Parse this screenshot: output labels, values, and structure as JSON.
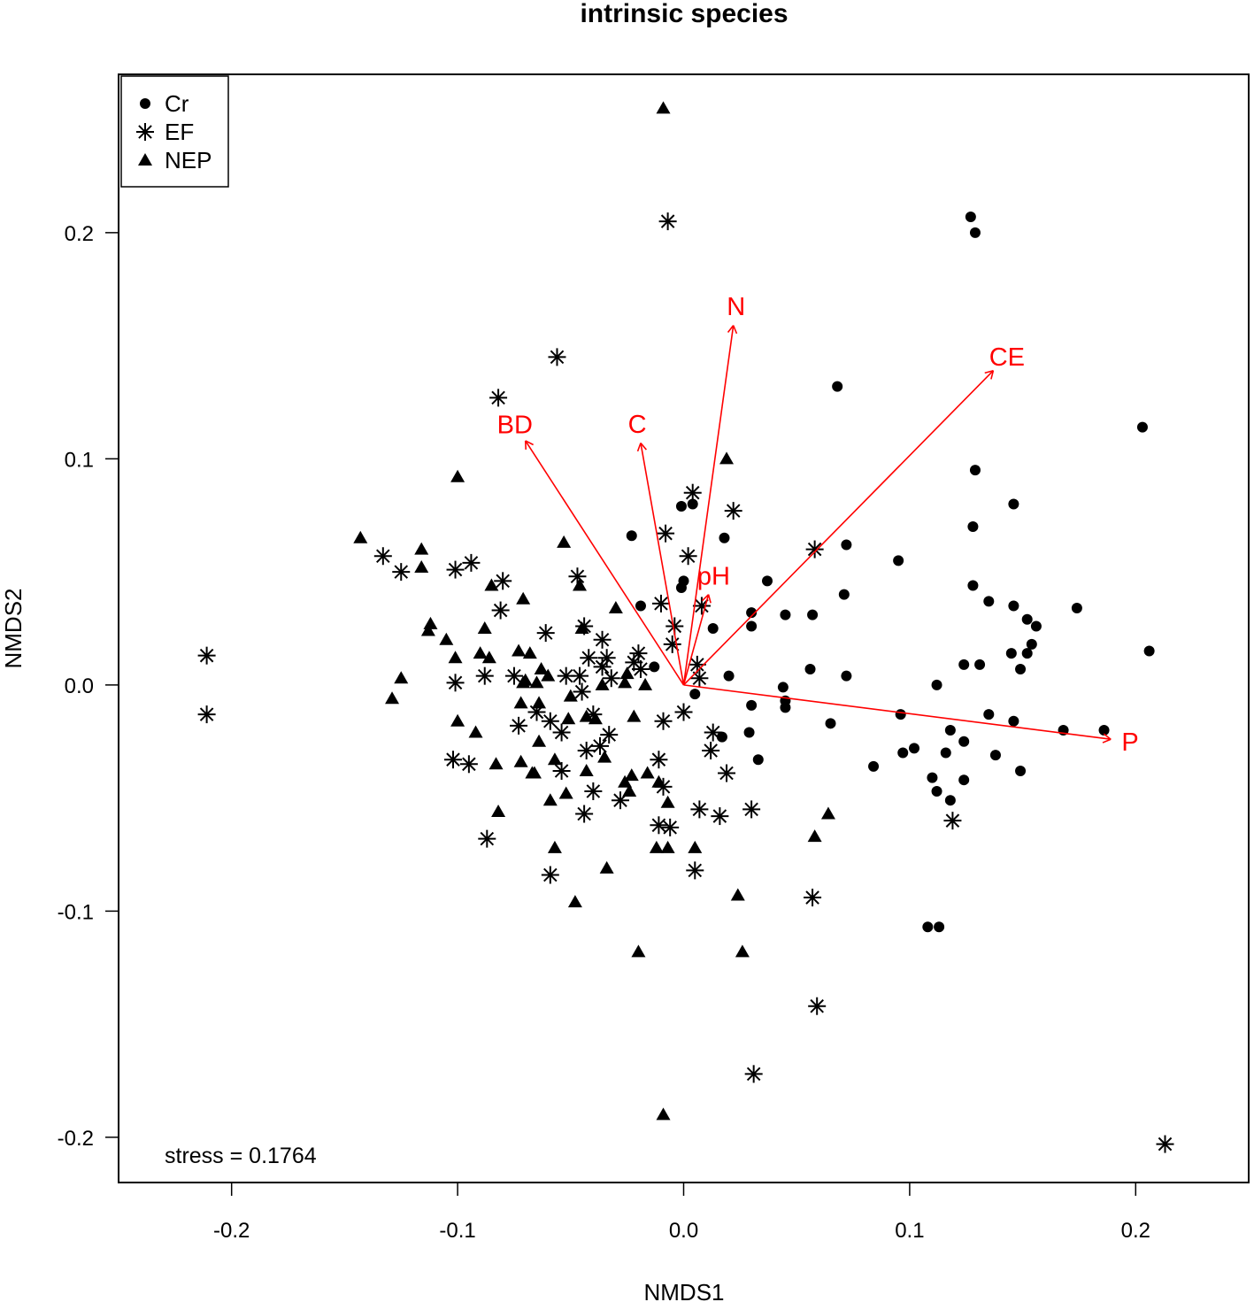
{
  "chart_data": {
    "type": "scatter",
    "title": "intrinsic species",
    "xlabel": "NMDS1",
    "ylabel": "NMDS2",
    "xlim": [
      -0.25,
      0.25
    ],
    "ylim": [
      -0.22,
      0.27
    ],
    "x_ticks": [
      "-0.2",
      "-0.1",
      "0.0",
      "0.1",
      "0.2"
    ],
    "y_ticks": [
      "-0.2",
      "-0.1",
      "0.0",
      "0.1",
      "0.2"
    ],
    "x_tick_values": [
      -0.2,
      -0.1,
      0.0,
      0.1,
      0.2
    ],
    "y_tick_values": [
      -0.2,
      -0.1,
      0.0,
      0.1,
      0.2
    ],
    "grid": false,
    "legend_position": "top-left",
    "annotation": "stress = 0.1764",
    "vector_color": "#ff0000",
    "series": [
      {
        "name": "Cr",
        "marker": "circle",
        "points": [
          [
            0.127,
            0.207
          ],
          [
            0.129,
            0.2
          ],
          [
            0.068,
            0.132
          ],
          [
            0.203,
            0.114
          ],
          [
            0.129,
            0.095
          ],
          [
            0.146,
            0.08
          ],
          [
            -0.001,
            0.079
          ],
          [
            0.004,
            0.08
          ],
          [
            0.128,
            0.07
          ],
          [
            -0.023,
            0.066
          ],
          [
            0.018,
            0.065
          ],
          [
            0.072,
            0.062
          ],
          [
            0.095,
            0.055
          ],
          [
            0.0,
            0.046
          ],
          [
            0.037,
            0.046
          ],
          [
            -0.001,
            0.043
          ],
          [
            0.128,
            0.044
          ],
          [
            0.071,
            0.04
          ],
          [
            0.135,
            0.037
          ],
          [
            0.146,
            0.035
          ],
          [
            0.174,
            0.034
          ],
          [
            -0.019,
            0.035
          ],
          [
            0.03,
            0.032
          ],
          [
            0.045,
            0.031
          ],
          [
            0.057,
            0.031
          ],
          [
            0.152,
            0.029
          ],
          [
            0.156,
            0.026
          ],
          [
            0.03,
            0.026
          ],
          [
            0.013,
            0.025
          ],
          [
            0.154,
            0.018
          ],
          [
            0.206,
            0.015
          ],
          [
            0.152,
            0.014
          ],
          [
            0.145,
            0.014
          ],
          [
            0.124,
            0.009
          ],
          [
            0.131,
            0.009
          ],
          [
            0.149,
            0.007
          ],
          [
            -0.013,
            0.008
          ],
          [
            0.056,
            0.007
          ],
          [
            0.072,
            0.004
          ],
          [
            0.02,
            0.004
          ],
          [
            0.112,
            0.0
          ],
          [
            0.044,
            -0.001
          ],
          [
            0.005,
            -0.004
          ],
          [
            0.045,
            -0.007
          ],
          [
            0.03,
            -0.009
          ],
          [
            0.045,
            -0.01
          ],
          [
            0.096,
            -0.013
          ],
          [
            0.135,
            -0.013
          ],
          [
            0.146,
            -0.016
          ],
          [
            0.065,
            -0.017
          ],
          [
            0.118,
            -0.02
          ],
          [
            0.168,
            -0.02
          ],
          [
            0.186,
            -0.02
          ],
          [
            0.029,
            -0.021
          ],
          [
            0.017,
            -0.023
          ],
          [
            0.124,
            -0.025
          ],
          [
            0.102,
            -0.028
          ],
          [
            0.097,
            -0.03
          ],
          [
            0.116,
            -0.03
          ],
          [
            0.138,
            -0.031
          ],
          [
            0.033,
            -0.033
          ],
          [
            0.084,
            -0.036
          ],
          [
            0.149,
            -0.038
          ],
          [
            0.11,
            -0.041
          ],
          [
            0.124,
            -0.042
          ],
          [
            0.112,
            -0.047
          ],
          [
            0.118,
            -0.051
          ],
          [
            0.108,
            -0.107
          ],
          [
            0.113,
            -0.107
          ]
        ]
      },
      {
        "name": "EF",
        "marker": "asterisk",
        "points": [
          [
            -0.007,
            0.205
          ],
          [
            -0.056,
            0.145
          ],
          [
            -0.082,
            0.127
          ],
          [
            0.004,
            0.085
          ],
          [
            0.022,
            0.077
          ],
          [
            -0.008,
            0.067
          ],
          [
            0.002,
            0.057
          ],
          [
            0.058,
            0.06
          ],
          [
            -0.133,
            0.057
          ],
          [
            -0.094,
            0.054
          ],
          [
            -0.125,
            0.05
          ],
          [
            -0.101,
            0.051
          ],
          [
            -0.08,
            0.046
          ],
          [
            -0.047,
            0.048
          ],
          [
            -0.01,
            0.036
          ],
          [
            0.008,
            0.035
          ],
          [
            -0.081,
            0.033
          ],
          [
            -0.061,
            0.023
          ],
          [
            -0.044,
            0.026
          ],
          [
            -0.004,
            0.026
          ],
          [
            -0.036,
            0.02
          ],
          [
            -0.005,
            0.018
          ],
          [
            -0.02,
            0.014
          ],
          [
            -0.042,
            0.012
          ],
          [
            -0.034,
            0.012
          ],
          [
            -0.036,
            0.008
          ],
          [
            -0.022,
            0.01
          ],
          [
            -0.019,
            0.007
          ],
          [
            0.006,
            0.009
          ],
          [
            -0.211,
            0.013
          ],
          [
            -0.046,
            0.004
          ],
          [
            -0.052,
            0.004
          ],
          [
            -0.088,
            0.004
          ],
          [
            -0.075,
            0.004
          ],
          [
            -0.032,
            0.003
          ],
          [
            0.007,
            0.003
          ],
          [
            -0.101,
            0.001
          ],
          [
            -0.045,
            -0.003
          ],
          [
            -0.065,
            -0.012
          ],
          [
            -0.009,
            -0.016
          ],
          [
            0.0,
            -0.012
          ],
          [
            -0.211,
            -0.013
          ],
          [
            -0.04,
            -0.013
          ],
          [
            -0.059,
            -0.016
          ],
          [
            -0.073,
            -0.018
          ],
          [
            -0.054,
            -0.021
          ],
          [
            0.013,
            -0.021
          ],
          [
            -0.033,
            -0.022
          ],
          [
            -0.037,
            -0.027
          ],
          [
            0.012,
            -0.029
          ],
          [
            -0.043,
            -0.029
          ],
          [
            -0.102,
            -0.033
          ],
          [
            -0.095,
            -0.035
          ],
          [
            -0.011,
            -0.033
          ],
          [
            -0.054,
            -0.038
          ],
          [
            0.019,
            -0.039
          ],
          [
            -0.009,
            -0.045
          ],
          [
            -0.04,
            -0.047
          ],
          [
            -0.028,
            -0.051
          ],
          [
            0.007,
            -0.055
          ],
          [
            0.03,
            -0.055
          ],
          [
            -0.044,
            -0.057
          ],
          [
            0.016,
            -0.058
          ],
          [
            -0.011,
            -0.062
          ],
          [
            -0.006,
            -0.063
          ],
          [
            0.119,
            -0.06
          ],
          [
            -0.087,
            -0.068
          ],
          [
            0.005,
            -0.082
          ],
          [
            -0.059,
            -0.084
          ],
          [
            0.057,
            -0.094
          ],
          [
            0.059,
            -0.142
          ],
          [
            0.031,
            -0.172
          ],
          [
            0.213,
            -0.203
          ]
        ]
      },
      {
        "name": "NEP",
        "marker": "triangle",
        "points": [
          [
            -0.009,
            0.255
          ],
          [
            0.019,
            0.1
          ],
          [
            -0.1,
            0.092
          ],
          [
            -0.143,
            0.065
          ],
          [
            -0.053,
            0.063
          ],
          [
            -0.116,
            0.06
          ],
          [
            -0.116,
            0.052
          ],
          [
            -0.046,
            0.044
          ],
          [
            -0.085,
            0.044
          ],
          [
            -0.071,
            0.038
          ],
          [
            -0.112,
            0.027
          ],
          [
            -0.045,
            0.025
          ],
          [
            -0.105,
            0.02
          ],
          [
            -0.03,
            0.034
          ],
          [
            -0.113,
            0.024
          ],
          [
            -0.088,
            0.025
          ],
          [
            -0.09,
            0.014
          ],
          [
            -0.073,
            0.015
          ],
          [
            -0.068,
            0.014
          ],
          [
            -0.101,
            0.012
          ],
          [
            -0.086,
            0.012
          ],
          [
            -0.063,
            0.007
          ],
          [
            -0.06,
            0.004
          ],
          [
            -0.125,
            0.003
          ],
          [
            -0.07,
            0.002
          ],
          [
            -0.071,
            0.001
          ],
          [
            -0.065,
            0.001
          ],
          [
            -0.025,
            0.005
          ],
          [
            -0.026,
            0.001
          ],
          [
            -0.036,
            0.0
          ],
          [
            -0.129,
            -0.006
          ],
          [
            -0.05,
            -0.005
          ],
          [
            -0.064,
            -0.008
          ],
          [
            -0.072,
            -0.008
          ],
          [
            -0.017,
            0.0
          ],
          [
            -0.1,
            -0.016
          ],
          [
            -0.051,
            -0.015
          ],
          [
            -0.043,
            -0.014
          ],
          [
            -0.039,
            -0.015
          ],
          [
            -0.092,
            -0.021
          ],
          [
            -0.022,
            -0.014
          ],
          [
            -0.064,
            -0.025
          ],
          [
            -0.083,
            -0.035
          ],
          [
            -0.072,
            -0.034
          ],
          [
            -0.057,
            -0.033
          ],
          [
            -0.067,
            -0.039
          ],
          [
            -0.066,
            -0.039
          ],
          [
            -0.035,
            -0.032
          ],
          [
            -0.043,
            -0.038
          ],
          [
            -0.023,
            -0.04
          ],
          [
            -0.016,
            -0.039
          ],
          [
            -0.026,
            -0.043
          ],
          [
            -0.024,
            -0.047
          ],
          [
            -0.052,
            -0.048
          ],
          [
            -0.011,
            -0.043
          ],
          [
            -0.082,
            -0.056
          ],
          [
            -0.059,
            -0.051
          ],
          [
            -0.007,
            -0.052
          ],
          [
            0.064,
            -0.057
          ],
          [
            -0.057,
            -0.072
          ],
          [
            -0.034,
            -0.081
          ],
          [
            -0.012,
            -0.072
          ],
          [
            -0.007,
            -0.072
          ],
          [
            0.005,
            -0.072
          ],
          [
            0.058,
            -0.067
          ],
          [
            -0.048,
            -0.096
          ],
          [
            0.024,
            -0.093
          ],
          [
            -0.02,
            -0.118
          ],
          [
            0.026,
            -0.118
          ],
          [
            -0.009,
            -0.19
          ]
        ]
      }
    ],
    "vectors": [
      {
        "label": "N",
        "x": 0.022,
        "y": 0.159
      },
      {
        "label": "CE",
        "x": 0.137,
        "y": 0.139
      },
      {
        "label": "BD",
        "x": -0.07,
        "y": 0.108
      },
      {
        "label": "C",
        "x": -0.019,
        "y": 0.107
      },
      {
        "label": "pH",
        "x": 0.011,
        "y": 0.04
      },
      {
        "label": "P",
        "x": 0.189,
        "y": -0.024
      }
    ]
  }
}
